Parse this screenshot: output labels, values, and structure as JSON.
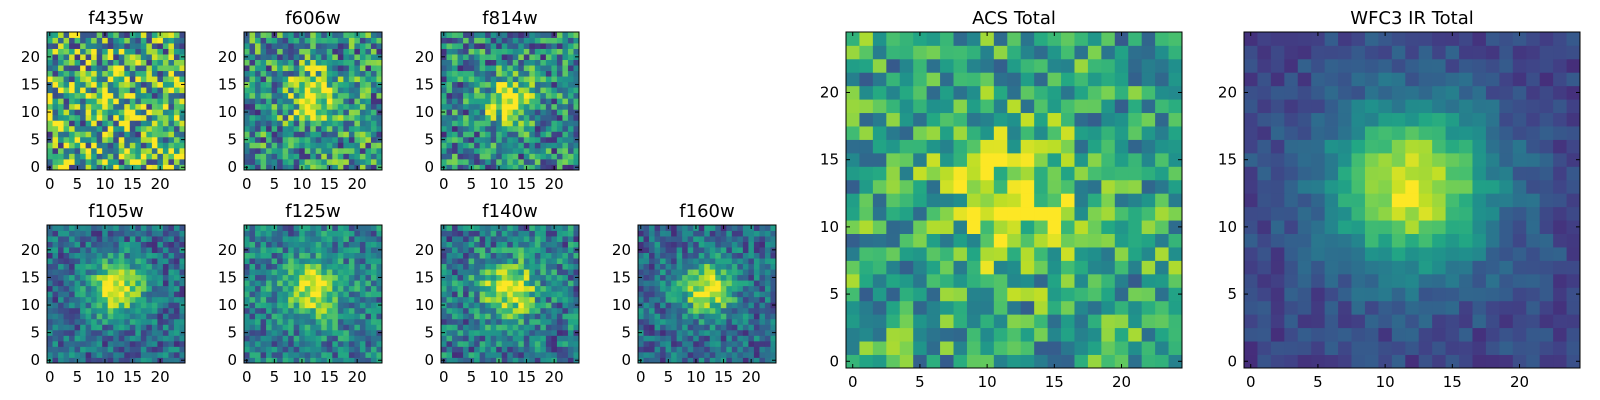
{
  "chart_data": {
    "type": "heatmap",
    "colormap": "viridis",
    "grid": false,
    "panels": [
      {
        "id": "f435w",
        "title": "f435w",
        "size": 25,
        "xticks": [
          0,
          5,
          10,
          15,
          20
        ],
        "yticks": [
          0,
          5,
          10,
          15,
          20
        ],
        "peak": [
          12,
          13
        ],
        "sigma": 3.5,
        "amp": 0.15,
        "noise": 0.95,
        "base": 0.62
      },
      {
        "id": "f606w",
        "title": "f606w",
        "size": 25,
        "xticks": [
          0,
          5,
          10,
          15,
          20
        ],
        "yticks": [
          0,
          5,
          10,
          15,
          20
        ],
        "peak": [
          12,
          13
        ],
        "sigma": 3.2,
        "amp": 0.45,
        "noise": 0.75,
        "base": 0.5
      },
      {
        "id": "f814w",
        "title": "f814w",
        "size": 25,
        "xticks": [
          0,
          5,
          10,
          15,
          20
        ],
        "yticks": [
          0,
          5,
          10,
          15,
          20
        ],
        "peak": [
          12,
          12
        ],
        "sigma": 3.0,
        "amp": 0.6,
        "noise": 0.7,
        "base": 0.45
      },
      {
        "id": "f105w",
        "title": "f105w",
        "size": 25,
        "xticks": [
          0,
          5,
          10,
          15,
          20
        ],
        "yticks": [
          0,
          5,
          10,
          15,
          20
        ],
        "peak": [
          12,
          13
        ],
        "sigma": 3.5,
        "amp": 0.65,
        "noise": 0.45,
        "base": 0.35
      },
      {
        "id": "f125w",
        "title": "f125w",
        "size": 25,
        "xticks": [
          0,
          5,
          10,
          15,
          20
        ],
        "yticks": [
          0,
          5,
          10,
          15,
          20
        ],
        "peak": [
          12,
          13
        ],
        "sigma": 3.8,
        "amp": 0.55,
        "noise": 0.5,
        "base": 0.42
      },
      {
        "id": "f140w",
        "title": "f140w",
        "size": 25,
        "xticks": [
          0,
          5,
          10,
          15,
          20
        ],
        "yticks": [
          0,
          5,
          10,
          15,
          20
        ],
        "peak": [
          12,
          13
        ],
        "sigma": 3.6,
        "amp": 0.6,
        "noise": 0.55,
        "base": 0.4
      },
      {
        "id": "f160w",
        "title": "f160w",
        "size": 25,
        "xticks": [
          0,
          5,
          10,
          15,
          20
        ],
        "yticks": [
          0,
          5,
          10,
          15,
          20
        ],
        "peak": [
          12,
          13
        ],
        "sigma": 3.3,
        "amp": 0.65,
        "noise": 0.45,
        "base": 0.35
      },
      {
        "id": "acs_total",
        "title": "ACS Total",
        "size": 25,
        "xticks": [
          0,
          5,
          10,
          15,
          20
        ],
        "yticks": [
          0,
          5,
          10,
          15,
          20
        ],
        "peak": [
          12,
          12
        ],
        "sigma": 3.2,
        "amp": 0.4,
        "noise": 0.6,
        "base": 0.58
      },
      {
        "id": "wfc3_total",
        "title": "WFC3 IR Total",
        "size": 25,
        "xticks": [
          0,
          5,
          10,
          15,
          20
        ],
        "yticks": [
          0,
          5,
          10,
          15,
          20
        ],
        "peak": [
          12,
          13
        ],
        "sigma": 4.2,
        "amp": 0.75,
        "noise": 0.18,
        "base": 0.22
      }
    ]
  }
}
